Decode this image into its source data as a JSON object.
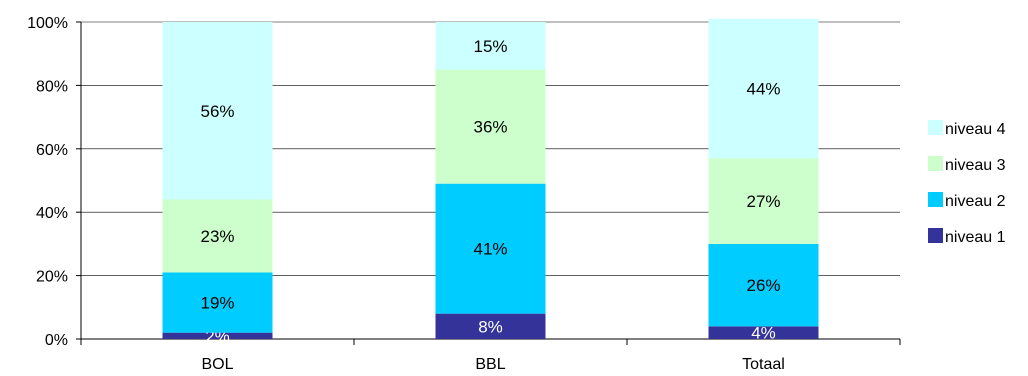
{
  "chart_data": {
    "type": "bar",
    "stacked": true,
    "percent": true,
    "categories": [
      "BOL",
      "BBL",
      "Totaal"
    ],
    "series": [
      {
        "name": "niveau 1",
        "color": "#333399",
        "values": [
          2,
          8,
          4
        ],
        "labels": [
          "2%",
          "8%",
          "4%"
        ]
      },
      {
        "name": "niveau 2",
        "color": "#00ccff",
        "values": [
          19,
          41,
          26
        ],
        "labels": [
          "19%",
          "41%",
          "26%"
        ]
      },
      {
        "name": "niveau 3",
        "color": "#ccffcc",
        "values": [
          23,
          36,
          27
        ],
        "labels": [
          "23%",
          "36%",
          "27%"
        ]
      },
      {
        "name": "niveau 4",
        "color": "#ccffff",
        "values": [
          56,
          15,
          44
        ],
        "labels": [
          "56%",
          "15%",
          "44%"
        ]
      }
    ],
    "ylim": [
      0,
      100
    ],
    "yticks": [
      "0%",
      "20%",
      "40%",
      "60%",
      "80%",
      "100%"
    ],
    "grid": true,
    "legend": "right"
  }
}
